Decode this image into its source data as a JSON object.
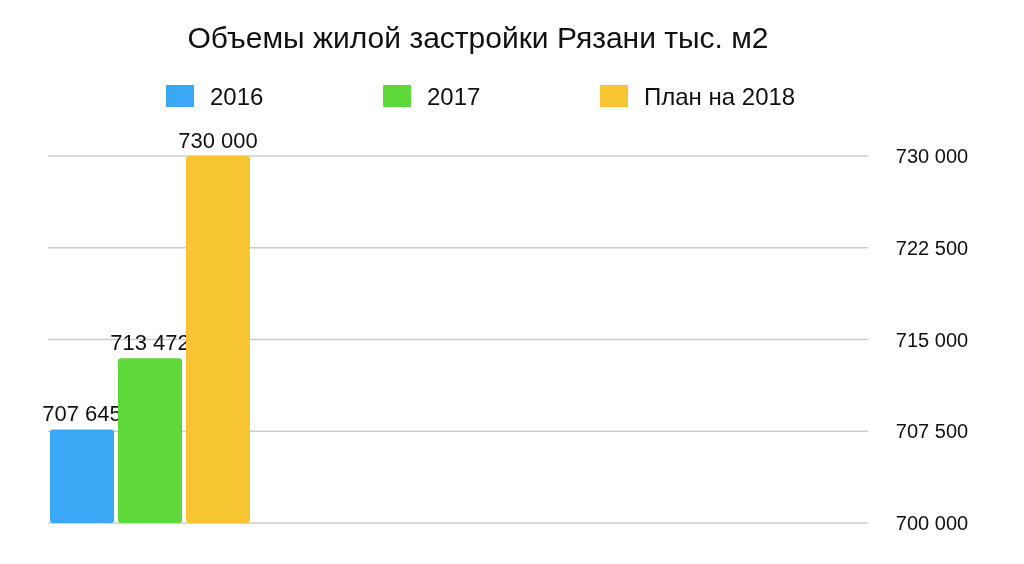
{
  "chart_data": {
    "type": "bar",
    "title": "Объемы жилой застройки Рязани тыс. м2",
    "categories": [
      null
    ],
    "series": [
      {
        "name": "2016",
        "color": "#3aa8f5",
        "values": [
          707645
        ],
        "value_labels": [
          "707 645"
        ]
      },
      {
        "name": "2017",
        "color": "#5fd93a",
        "values": [
          713472
        ],
        "value_labels": [
          "713 472"
        ]
      },
      {
        "name": "План на 2018",
        "color": "#f7c531",
        "values": [
          730000
        ],
        "value_labels": [
          "730 000"
        ]
      }
    ],
    "ylim": [
      700000,
      730000
    ],
    "yticks": [
      {
        "value": 700000,
        "label": "700 000"
      },
      {
        "value": 707500,
        "label": "707 500"
      },
      {
        "value": 715000,
        "label": "715 000"
      },
      {
        "value": 722500,
        "label": "722 500"
      },
      {
        "value": 730000,
        "label": "730 000"
      }
    ],
    "grid": "y",
    "legend": "top"
  }
}
